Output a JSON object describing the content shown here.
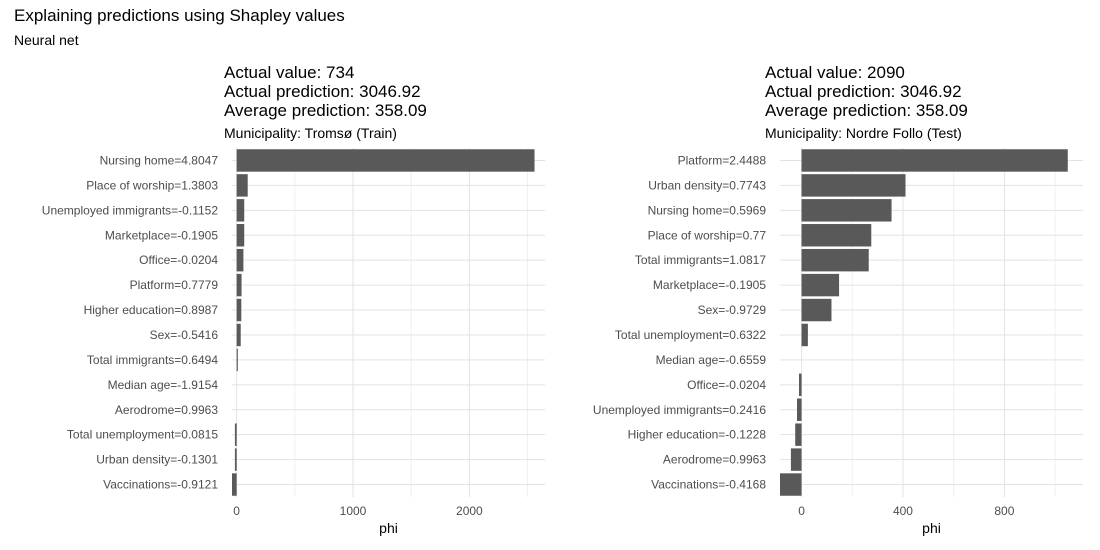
{
  "title": "Explaining predictions using Shapley values",
  "subtitle": "Neural net",
  "chart_data": [
    {
      "type": "bar",
      "orientation": "horizontal",
      "header_lines": [
        "Actual value: 734",
        "Actual prediction: 3046.92",
        "Average prediction: 358.09"
      ],
      "panel_subtitle": "Municipality: Tromsø (Train)",
      "xlabel": "phi",
      "xlim": [
        -40,
        2650
      ],
      "xticks": [
        0,
        1000,
        2000
      ],
      "xticklabels": [
        "0",
        "1000",
        "2000"
      ],
      "grid": true,
      "bar_color": "#595959",
      "categories": [
        "Nursing home=4.8047",
        "Place of worship=1.3803",
        "Unemployed immigrants=-0.1152",
        "Marketplace=-0.1905",
        "Office=-0.0204",
        "Platform=0.7779",
        "Higher education=0.8987",
        "Sex=-0.5416",
        "Total immigrants=0.6494",
        "Median age=-1.9154",
        "Aerodrome=0.9963",
        "Total unemployment=0.0815",
        "Urban density=-0.1301",
        "Vaccinations=-0.9121"
      ],
      "values": [
        2560,
        95,
        65,
        65,
        58,
        42,
        40,
        35,
        10,
        0,
        0,
        -15,
        -15,
        -40
      ]
    },
    {
      "type": "bar",
      "orientation": "horizontal",
      "header_lines": [
        "Actual value: 2090",
        "Actual prediction: 3046.92",
        "Average prediction: 358.09"
      ],
      "panel_subtitle": "Municipality: Nordre Follo (Test)",
      "xlabel": "phi",
      "xlim": [
        -85,
        1110
      ],
      "xticks": [
        0,
        400,
        800
      ],
      "xticklabels": [
        "0",
        "400",
        "800"
      ],
      "grid": true,
      "bar_color": "#595959",
      "categories": [
        "Platform=2.4488",
        "Urban density=0.7743",
        "Nursing home=0.5969",
        "Place of worship=0.77",
        "Total immigrants=1.0817",
        "Marketplace=-0.1905",
        "Sex=-0.9729",
        "Total unemployment=0.6322",
        "Median age=-0.6559",
        "Office=-0.0204",
        "Unemployed immigrants=0.2416",
        "Higher education=-0.1228",
        "Aerodrome=0.9963",
        "Vaccinations=-0.4168"
      ],
      "values": [
        1050,
        410,
        355,
        275,
        265,
        148,
        118,
        25,
        0,
        -10,
        -18,
        -25,
        -42,
        -85
      ]
    }
  ]
}
